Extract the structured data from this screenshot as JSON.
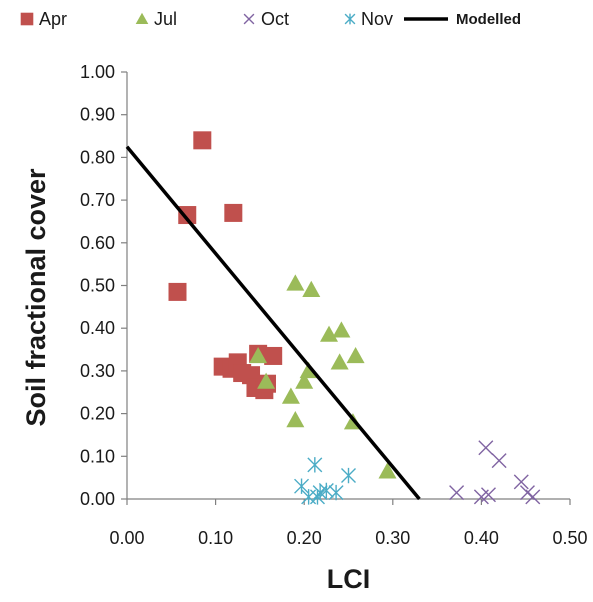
{
  "chart_data": {
    "type": "scatter",
    "title": "",
    "xlabel": "LCI",
    "ylabel": "Soil fractional cover",
    "xlim": [
      0,
      0.5
    ],
    "ylim": [
      0,
      1.0
    ],
    "grid": false,
    "legend_position": "top",
    "x_ticks": [
      "0.00",
      "0.10",
      "0.20",
      "0.30",
      "0.40",
      "0.50"
    ],
    "y_ticks": [
      "0.00",
      "0.10",
      "0.20",
      "0.30",
      "0.40",
      "0.50",
      "0.60",
      "0.70",
      "0.80",
      "0.90",
      "1.00"
    ],
    "series": [
      {
        "name": "Apr",
        "marker": "square",
        "color": "#c0504d",
        "points": [
          [
            0.085,
            0.84
          ],
          [
            0.068,
            0.665
          ],
          [
            0.12,
            0.67
          ],
          [
            0.057,
            0.485
          ],
          [
            0.108,
            0.31
          ],
          [
            0.118,
            0.305
          ],
          [
            0.125,
            0.32
          ],
          [
            0.13,
            0.295
          ],
          [
            0.14,
            0.29
          ],
          [
            0.148,
            0.34
          ],
          [
            0.165,
            0.335
          ],
          [
            0.145,
            0.26
          ],
          [
            0.155,
            0.255
          ],
          [
            0.158,
            0.27
          ]
        ]
      },
      {
        "name": "Jul",
        "marker": "triangle",
        "color": "#9bbb59",
        "points": [
          [
            0.19,
            0.505
          ],
          [
            0.208,
            0.49
          ],
          [
            0.228,
            0.385
          ],
          [
            0.242,
            0.395
          ],
          [
            0.258,
            0.335
          ],
          [
            0.24,
            0.32
          ],
          [
            0.148,
            0.335
          ],
          [
            0.157,
            0.275
          ],
          [
            0.2,
            0.275
          ],
          [
            0.205,
            0.3
          ],
          [
            0.185,
            0.24
          ],
          [
            0.19,
            0.185
          ],
          [
            0.255,
            0.18
          ],
          [
            0.294,
            0.065
          ]
        ]
      },
      {
        "name": "Oct",
        "marker": "x",
        "color": "#8064a2",
        "points": [
          [
            0.405,
            0.12
          ],
          [
            0.42,
            0.09
          ],
          [
            0.372,
            0.015
          ],
          [
            0.4,
            0.005
          ],
          [
            0.408,
            0.01
          ],
          [
            0.445,
            0.04
          ],
          [
            0.452,
            0.015
          ],
          [
            0.458,
            0.005
          ]
        ]
      },
      {
        "name": "Nov",
        "marker": "asterisk",
        "color": "#4bacc6",
        "points": [
          [
            0.197,
            0.03
          ],
          [
            0.212,
            0.08
          ],
          [
            0.218,
            0.015
          ],
          [
            0.225,
            0.02
          ],
          [
            0.236,
            0.015
          ],
          [
            0.25,
            0.055
          ],
          [
            0.205,
            0.005
          ],
          [
            0.215,
            0.005
          ]
        ]
      },
      {
        "name": "Modelled",
        "marker": "line",
        "color": "#000000",
        "points": [
          [
            0.0,
            0.825
          ],
          [
            0.33,
            0.0
          ]
        ]
      }
    ]
  }
}
